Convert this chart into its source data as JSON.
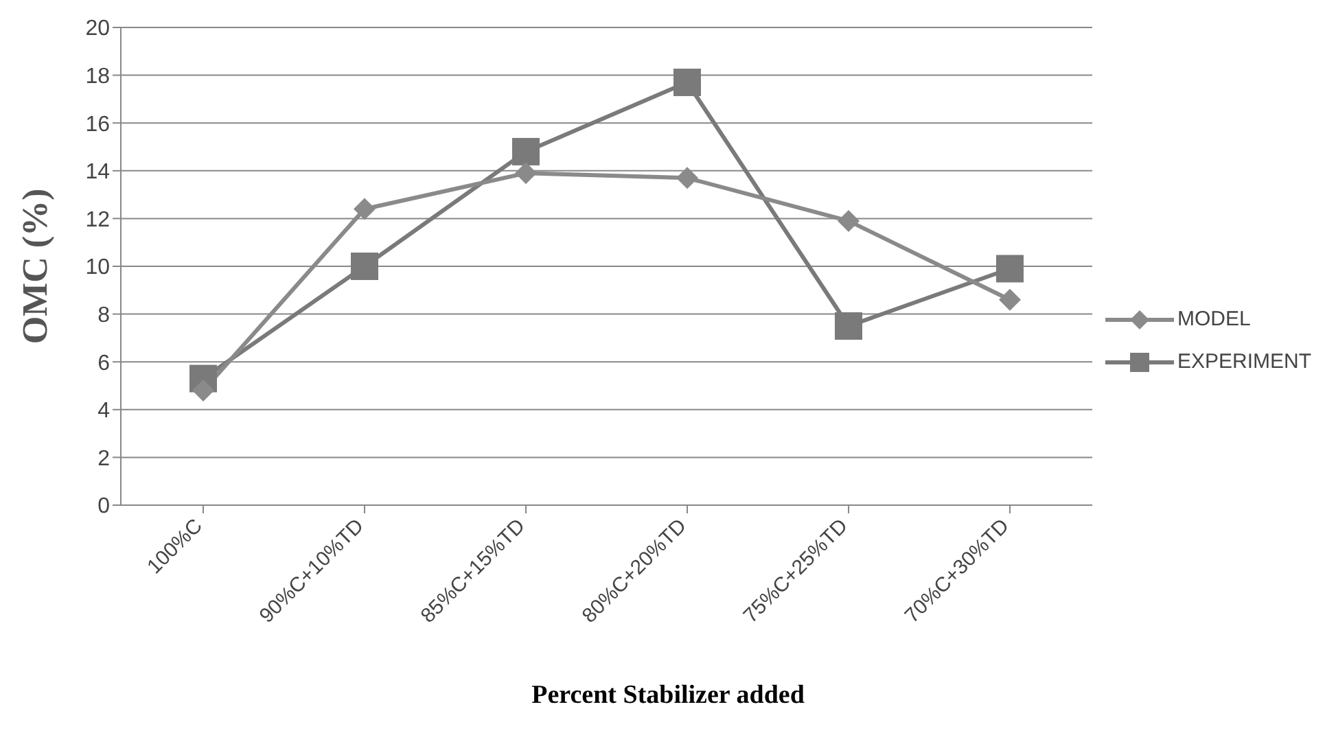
{
  "chart_data": {
    "type": "line",
    "xlabel": "Percent Stabilizer added",
    "ylabel": "OMC (%)",
    "categories": [
      "100%C",
      "90%C+10%TD",
      "85%C+15%TD",
      "80%C+20%TD",
      "75%C+25%TD",
      "70%C+30%TD"
    ],
    "series": [
      {
        "name": "MODEL",
        "color": "#8a8a8a",
        "marker": "diamond",
        "values": [
          4.8,
          12.4,
          13.9,
          13.7,
          11.9,
          8.6
        ]
      },
      {
        "name": "EXPERIMENT",
        "color": "#7a7a7a",
        "marker": "square",
        "values": [
          5.3,
          10.0,
          14.8,
          17.7,
          7.5,
          9.9
        ]
      }
    ],
    "ylim": [
      0,
      20
    ],
    "yticks": [
      0,
      2,
      4,
      6,
      8,
      10,
      12,
      14,
      16,
      18,
      20
    ],
    "grid": "y",
    "legend": "right"
  }
}
